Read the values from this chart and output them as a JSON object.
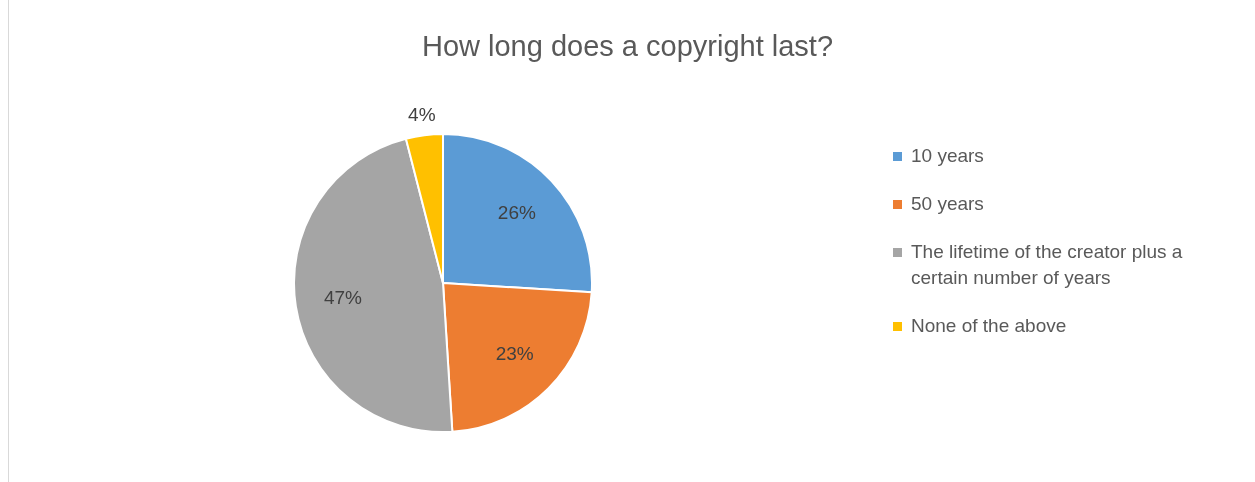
{
  "chart_data": {
    "type": "pie",
    "title": "How long does a copyright last?",
    "categories": [
      "10 years",
      "50 years",
      "The lifetime of the creator plus a certain number of years",
      "None of the above"
    ],
    "values": [
      26,
      23,
      47,
      4
    ],
    "colors": [
      "#5b9bd5",
      "#ed7d31",
      "#a5a5a5",
      "#ffc000"
    ],
    "value_labels": [
      "26%",
      "23%",
      "47%",
      "4%"
    ],
    "legend": "right"
  }
}
